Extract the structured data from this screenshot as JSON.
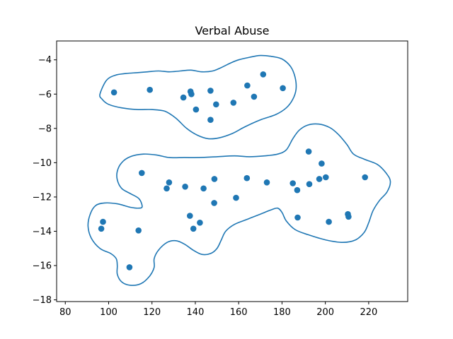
{
  "chart_data": {
    "type": "scatter",
    "title": "Verbal Abuse",
    "xlabel": "",
    "ylabel": "",
    "xlim": [
      76,
      238
    ],
    "ylim": [
      -18.1,
      -2.9
    ],
    "xticks": [
      80,
      100,
      120,
      140,
      160,
      180,
      200,
      220
    ],
    "yticks": [
      -4,
      -6,
      -8,
      -10,
      -12,
      -14,
      -16,
      -18
    ],
    "xtick_labels": [
      "80",
      "100",
      "120",
      "140",
      "160",
      "180",
      "200",
      "220"
    ],
    "ytick_labels": [
      "−4",
      "−6",
      "−8",
      "−10",
      "−12",
      "−14",
      "−16",
      "−18"
    ],
    "grid": false,
    "point_color": "#1f77b4",
    "contour_color": "#1f77b4",
    "points": [
      {
        "x": 102.5,
        "y": -5.9
      },
      {
        "x": 119,
        "y": -5.75
      },
      {
        "x": 134.5,
        "y": -6.2
      },
      {
        "x": 137.8,
        "y": -5.85
      },
      {
        "x": 138.2,
        "y": -6.0
      },
      {
        "x": 140.3,
        "y": -6.9
      },
      {
        "x": 147,
        "y": -5.8
      },
      {
        "x": 149.6,
        "y": -6.6
      },
      {
        "x": 147,
        "y": -7.5
      },
      {
        "x": 157.6,
        "y": -6.5
      },
      {
        "x": 164,
        "y": -5.5
      },
      {
        "x": 167.1,
        "y": -6.15
      },
      {
        "x": 171.3,
        "y": -4.85
      },
      {
        "x": 180.4,
        "y": -5.65
      },
      {
        "x": 115.3,
        "y": -10.6
      },
      {
        "x": 127.9,
        "y": -11.15
      },
      {
        "x": 126.8,
        "y": -11.5
      },
      {
        "x": 135.3,
        "y": -11.4
      },
      {
        "x": 143.8,
        "y": -11.5
      },
      {
        "x": 148.8,
        "y": -10.95
      },
      {
        "x": 148.7,
        "y": -12.35
      },
      {
        "x": 158.8,
        "y": -12.05
      },
      {
        "x": 163.8,
        "y": -10.9
      },
      {
        "x": 173,
        "y": -11.15
      },
      {
        "x": 185,
        "y": -11.2
      },
      {
        "x": 187,
        "y": -11.6
      },
      {
        "x": 192.3,
        "y": -9.35
      },
      {
        "x": 192.6,
        "y": -11.25
      },
      {
        "x": 197.2,
        "y": -10.95
      },
      {
        "x": 198.3,
        "y": -10.05
      },
      {
        "x": 200.2,
        "y": -10.85
      },
      {
        "x": 218.3,
        "y": -10.85
      },
      {
        "x": 97.4,
        "y": -13.45
      },
      {
        "x": 96.6,
        "y": -13.85
      },
      {
        "x": 113.8,
        "y": -13.95
      },
      {
        "x": 109.6,
        "y": -16.1
      },
      {
        "x": 137.5,
        "y": -13.1
      },
      {
        "x": 142.1,
        "y": -13.5
      },
      {
        "x": 139.1,
        "y": -13.85
      },
      {
        "x": 187.2,
        "y": -13.2
      },
      {
        "x": 201.6,
        "y": -13.45
      },
      {
        "x": 210.4,
        "y": -13.0
      },
      {
        "x": 210.7,
        "y": -13.15
      }
    ],
    "contours": [
      [
        [
          96,
          -6.0
        ],
        [
          99,
          -5.2
        ],
        [
          103,
          -4.9
        ],
        [
          108,
          -4.8
        ],
        [
          113,
          -4.75
        ],
        [
          118,
          -4.7
        ],
        [
          123,
          -4.65
        ],
        [
          128,
          -4.7
        ],
        [
          133,
          -4.65
        ],
        [
          138,
          -4.6
        ],
        [
          143,
          -4.7
        ],
        [
          148,
          -4.65
        ],
        [
          152,
          -4.45
        ],
        [
          156,
          -4.2
        ],
        [
          160,
          -4.0
        ],
        [
          165,
          -3.85
        ],
        [
          170,
          -3.75
        ],
        [
          175,
          -3.8
        ],
        [
          180,
          -3.95
        ],
        [
          184,
          -4.4
        ],
        [
          186,
          -5.0
        ],
        [
          186.5,
          -5.7
        ],
        [
          185,
          -6.3
        ],
        [
          182,
          -6.8
        ],
        [
          177,
          -7.2
        ],
        [
          170,
          -7.5
        ],
        [
          163,
          -7.9
        ],
        [
          157,
          -8.3
        ],
        [
          151,
          -8.55
        ],
        [
          146,
          -8.6
        ],
        [
          141,
          -8.4
        ],
        [
          136,
          -8.0
        ],
        [
          131,
          -7.4
        ],
        [
          126,
          -7.0
        ],
        [
          120,
          -6.9
        ],
        [
          113,
          -6.9
        ],
        [
          106,
          -6.8
        ],
        [
          100,
          -6.6
        ],
        [
          97,
          -6.3
        ],
        [
          96,
          -6.0
        ]
      ],
      [
        [
          104,
          -10.5
        ],
        [
          106,
          -10.0
        ],
        [
          110,
          -9.65
        ],
        [
          116,
          -9.5
        ],
        [
          122,
          -9.55
        ],
        [
          128,
          -9.7
        ],
        [
          135,
          -9.7
        ],
        [
          142,
          -9.7
        ],
        [
          150,
          -9.65
        ],
        [
          158,
          -9.6
        ],
        [
          165,
          -9.65
        ],
        [
          172,
          -9.6
        ],
        [
          178,
          -9.5
        ],
        [
          182,
          -9.25
        ],
        [
          185,
          -8.6
        ],
        [
          188,
          -8.1
        ],
        [
          192,
          -7.8
        ],
        [
          197,
          -7.75
        ],
        [
          202,
          -7.95
        ],
        [
          206,
          -8.35
        ],
        [
          210,
          -8.95
        ],
        [
          213,
          -9.5
        ],
        [
          218,
          -9.8
        ],
        [
          224,
          -10.1
        ],
        [
          228,
          -10.6
        ],
        [
          230,
          -11.1
        ],
        [
          228.5,
          -11.7
        ],
        [
          225,
          -12.2
        ],
        [
          222,
          -12.8
        ],
        [
          220,
          -13.5
        ],
        [
          218,
          -14.05
        ],
        [
          214,
          -14.5
        ],
        [
          208,
          -14.65
        ],
        [
          200,
          -14.5
        ],
        [
          192,
          -14.2
        ],
        [
          186,
          -13.9
        ],
        [
          182,
          -13.4
        ],
        [
          180,
          -12.9
        ],
        [
          178,
          -12.65
        ],
        [
          175,
          -12.75
        ],
        [
          170,
          -13.0
        ],
        [
          164,
          -13.3
        ],
        [
          158,
          -13.6
        ],
        [
          154,
          -14.0
        ],
        [
          152,
          -14.5
        ],
        [
          150,
          -15.0
        ],
        [
          147,
          -15.3
        ],
        [
          143,
          -15.35
        ],
        [
          139,
          -15.1
        ],
        [
          135,
          -14.75
        ],
        [
          131,
          -14.55
        ],
        [
          127,
          -14.65
        ],
        [
          123,
          -15.1
        ],
        [
          121,
          -15.6
        ],
        [
          121,
          -16.1
        ],
        [
          119,
          -16.6
        ],
        [
          115,
          -17.05
        ],
        [
          110,
          -17.15
        ],
        [
          106,
          -16.95
        ],
        [
          104,
          -16.5
        ],
        [
          104,
          -16.0
        ],
        [
          103.5,
          -15.6
        ],
        [
          101,
          -15.3
        ],
        [
          96,
          -15.0
        ],
        [
          92,
          -14.4
        ],
        [
          90.5,
          -13.7
        ],
        [
          91.5,
          -13.0
        ],
        [
          94,
          -12.5
        ],
        [
          98,
          -12.35
        ],
        [
          104,
          -12.4
        ],
        [
          110,
          -12.6
        ],
        [
          114,
          -12.65
        ],
        [
          115.5,
          -12.55
        ],
        [
          114,
          -12.1
        ],
        [
          110,
          -11.8
        ],
        [
          106,
          -11.5
        ],
        [
          104,
          -11.0
        ],
        [
          104,
          -10.5
        ]
      ]
    ]
  }
}
